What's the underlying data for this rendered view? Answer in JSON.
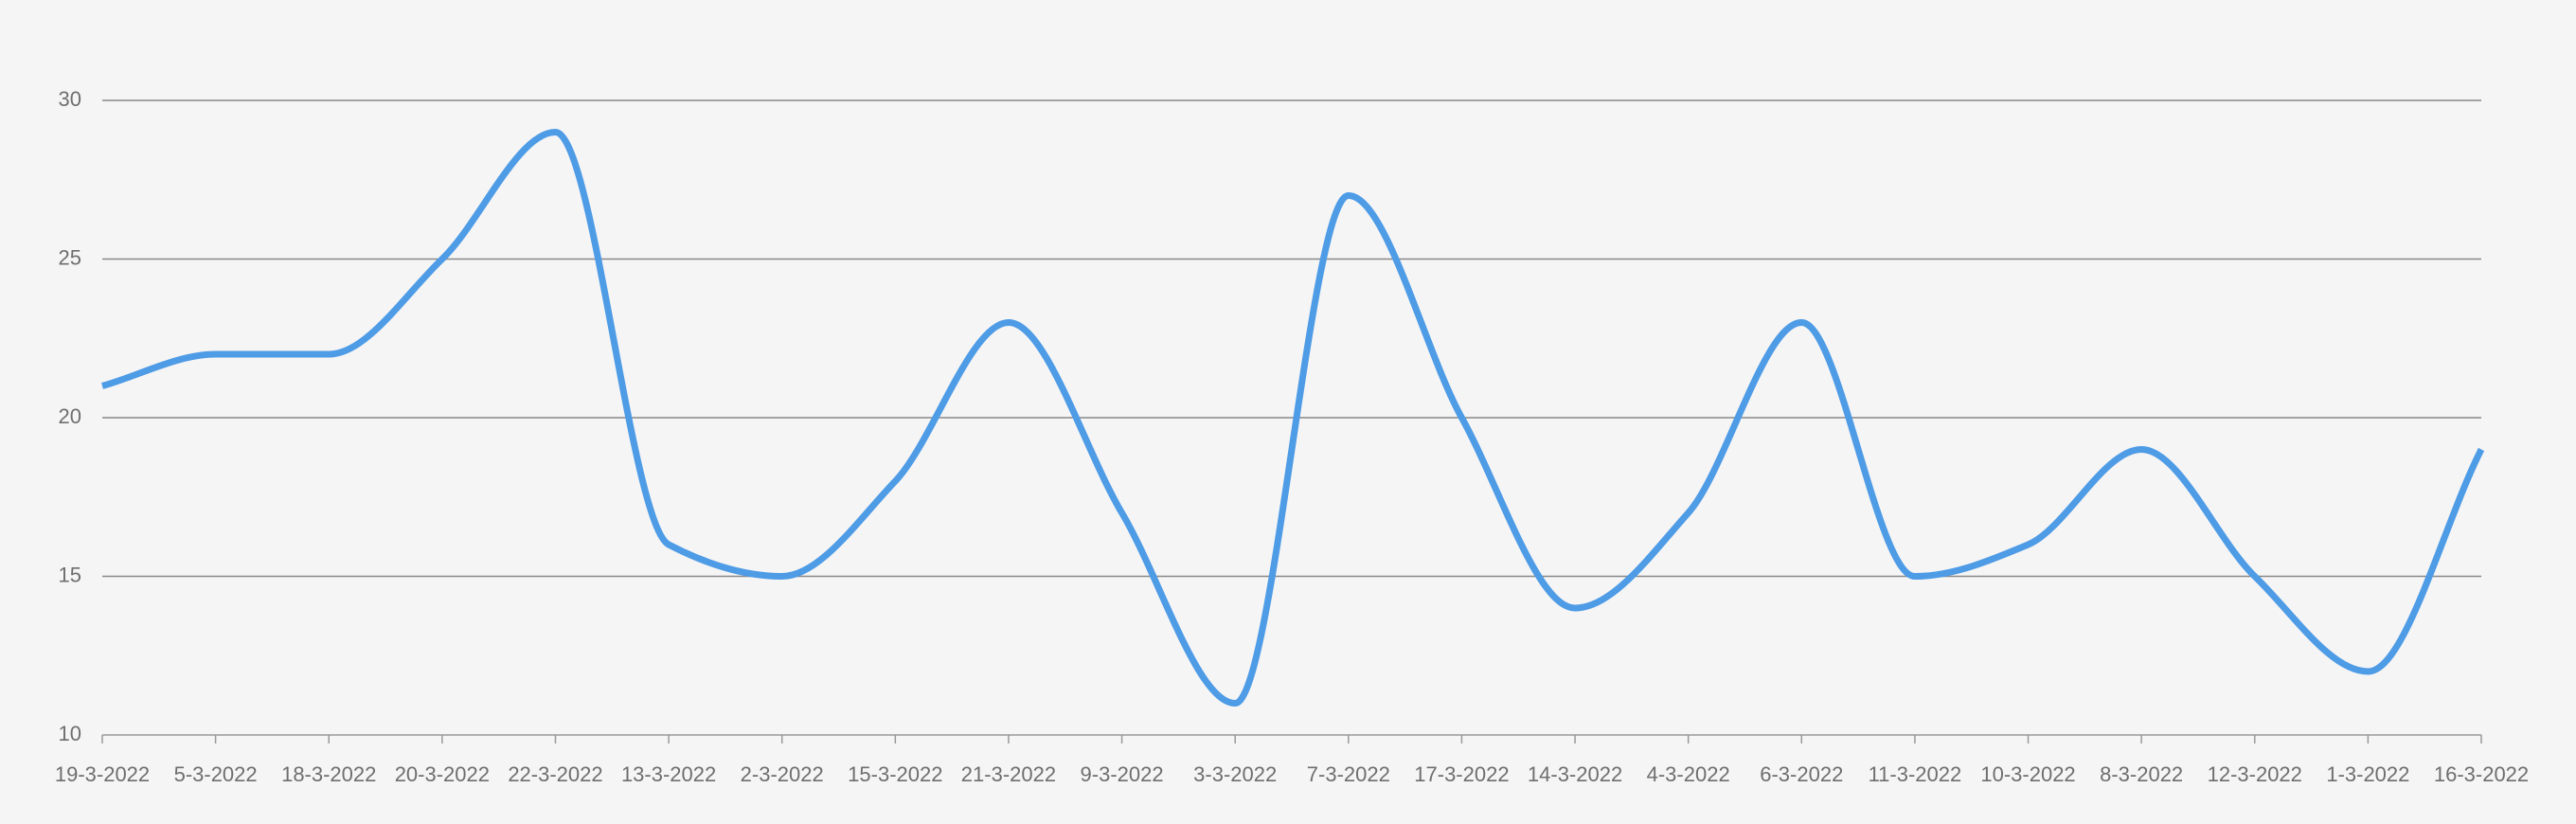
{
  "chart_data": {
    "type": "line",
    "categories": [
      "19-3-2022",
      "5-3-2022",
      "18-3-2022",
      "20-3-2022",
      "22-3-2022",
      "13-3-2022",
      "2-3-2022",
      "15-3-2022",
      "21-3-2022",
      "9-3-2022",
      "3-3-2022",
      "7-3-2022",
      "17-3-2022",
      "14-3-2022",
      "4-3-2022",
      "6-3-2022",
      "11-3-2022",
      "10-3-2022",
      "8-3-2022",
      "12-3-2022",
      "1-3-2022",
      "16-3-2022"
    ],
    "values": [
      21,
      22,
      22,
      25,
      29,
      16,
      15,
      18,
      23,
      17,
      11,
      27,
      20,
      14,
      17,
      23,
      15,
      16,
      19,
      15,
      12,
      19
    ],
    "color": "#4e9be6",
    "ylim": [
      10,
      30
    ],
    "yticks": [
      10,
      15,
      20,
      25,
      30
    ],
    "grid": true
  }
}
